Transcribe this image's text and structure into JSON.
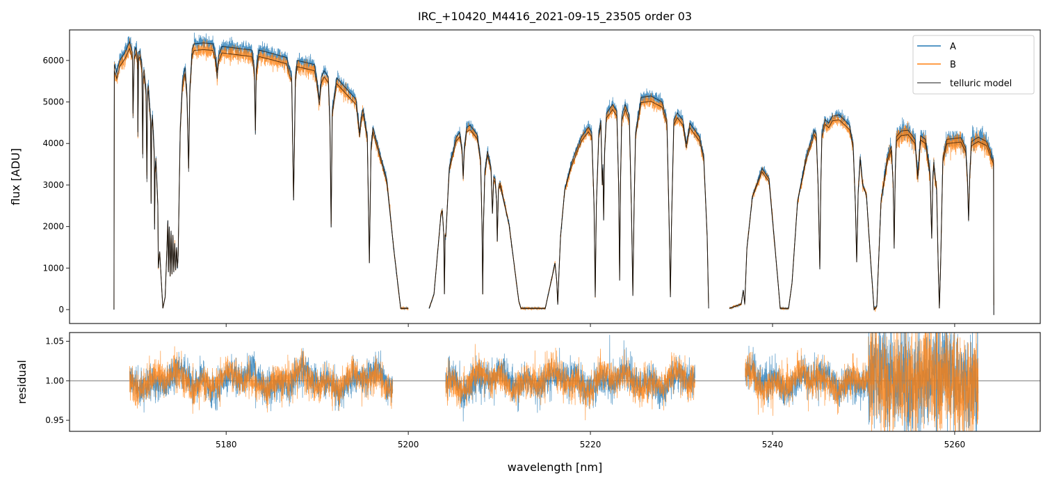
{
  "chart_data": [
    {
      "type": "line",
      "panel": "spectrum",
      "title": "IRC_+10420_M4416_2021-09-15_23505  order 03",
      "xlabel": "",
      "ylabel": "flux [ADU]",
      "xlim": [
        5162.8,
        5269.4
      ],
      "ylim": [
        -335,
        6735
      ],
      "yticks": [
        0,
        1000,
        2000,
        3000,
        4000,
        5000,
        6000
      ],
      "ytick_labels": [
        "0",
        "1000",
        "2000",
        "3000",
        "4000",
        "5000",
        "6000"
      ],
      "xticks": [
        5180,
        5200,
        5220,
        5240,
        5260
      ],
      "grid": false,
      "legend": {
        "placement": "top-right",
        "entries": [
          "A",
          "B",
          "telluric model"
        ]
      },
      "colors": {
        "A": "#1f77b4",
        "B": "#ff7f0e",
        "telluric model": "#000000"
      },
      "B_scale_vs_A": 0.975,
      "relative_noise": 0.012,
      "model_segments": [
        [
          [
            5167.68,
            0
          ],
          [
            5167.72,
            5900
          ],
          [
            5168.0,
            5700
          ],
          [
            5168.3,
            6000
          ],
          [
            5168.6,
            6100
          ],
          [
            5168.9,
            6200
          ],
          [
            5169.39,
            6450
          ],
          [
            5169.7,
            6200
          ],
          [
            5169.77,
            4725
          ],
          [
            5169.9,
            6200
          ],
          [
            5170.08,
            6320
          ],
          [
            5170.27,
            6100
          ],
          [
            5170.31,
            4270
          ],
          [
            5170.38,
            6200
          ],
          [
            5170.53,
            6230
          ],
          [
            5170.75,
            5900
          ],
          [
            5170.84,
            3737
          ],
          [
            5170.9,
            5700
          ],
          [
            5170.99,
            5780
          ],
          [
            5171.2,
            5300
          ],
          [
            5171.3,
            3150
          ],
          [
            5171.37,
            5300
          ],
          [
            5171.45,
            5400
          ],
          [
            5171.7,
            4600
          ],
          [
            5171.76,
            2550
          ],
          [
            5171.82,
            4500
          ],
          [
            5171.91,
            4690
          ],
          [
            5172.1,
            3800
          ],
          [
            5172.14,
            1930
          ],
          [
            5172.2,
            3400
          ],
          [
            5172.29,
            3650
          ],
          [
            5172.5,
            2500
          ],
          [
            5172.55,
            1000
          ],
          [
            5172.7,
            1400
          ],
          [
            5173.05,
            30
          ],
          [
            5173.3,
            300
          ],
          [
            5173.5,
            1500
          ],
          [
            5173.6,
            2150
          ],
          [
            5173.66,
            900
          ],
          [
            5173.75,
            2000
          ],
          [
            5173.85,
            800
          ],
          [
            5173.95,
            1900
          ],
          [
            5174.05,
            850
          ],
          [
            5174.15,
            1800
          ],
          [
            5174.25,
            900
          ],
          [
            5174.35,
            1600
          ],
          [
            5174.45,
            950
          ],
          [
            5174.55,
            1500
          ],
          [
            5174.65,
            1000
          ],
          [
            5174.73,
            1300
          ],
          [
            5174.96,
            4400
          ],
          [
            5175.2,
            5500
          ],
          [
            5175.5,
            5830
          ],
          [
            5175.7,
            5200
          ],
          [
            5175.88,
            3400
          ],
          [
            5176.0,
            5300
          ],
          [
            5176.26,
            6280
          ],
          [
            5176.49,
            6400
          ],
          [
            5177.5,
            6420
          ],
          [
            5178.55,
            6400
          ],
          [
            5178.85,
            6100
          ],
          [
            5179.01,
            5700
          ],
          [
            5179.15,
            6100
          ],
          [
            5179.54,
            6340
          ],
          [
            5181.0,
            6300
          ],
          [
            5182.82,
            6250
          ],
          [
            5183.1,
            5800
          ],
          [
            5183.21,
            4320
          ],
          [
            5183.3,
            5800
          ],
          [
            5183.59,
            6250
          ],
          [
            5185.0,
            6170
          ],
          [
            5186.64,
            6070
          ],
          [
            5187.2,
            5600
          ],
          [
            5187.4,
            2630
          ],
          [
            5187.6,
            5600
          ],
          [
            5187.79,
            6000
          ],
          [
            5189.69,
            5900
          ],
          [
            5190.0,
            5500
          ],
          [
            5190.23,
            5050
          ],
          [
            5190.45,
            5600
          ],
          [
            5190.76,
            5750
          ],
          [
            5191.22,
            5600
          ],
          [
            5191.4,
            4500
          ],
          [
            5191.53,
            1980
          ],
          [
            5191.65,
            4800
          ],
          [
            5192.14,
            5580
          ],
          [
            5194.27,
            5060
          ],
          [
            5194.5,
            4600
          ],
          [
            5194.66,
            4260
          ],
          [
            5194.85,
            4700
          ],
          [
            5195.04,
            4830
          ],
          [
            5195.5,
            4200
          ],
          [
            5195.73,
            1120
          ],
          [
            5195.9,
            3900
          ],
          [
            5196.11,
            4390
          ],
          [
            5197.63,
            3150
          ],
          [
            5198.4,
            1470
          ],
          [
            5199.16,
            30
          ],
          [
            5200.0,
            30
          ]
        ],
        [
          [
            5202.29,
            30
          ],
          [
            5202.82,
            370
          ],
          [
            5203.59,
            2310
          ],
          [
            5203.74,
            2380
          ],
          [
            5203.9,
            1800
          ],
          [
            5203.97,
            370
          ],
          [
            5204.05,
            1800
          ],
          [
            5204.12,
            1760
          ],
          [
            5204.5,
            3435
          ],
          [
            5205.27,
            4160
          ],
          [
            5205.65,
            4270
          ],
          [
            5205.9,
            3900
          ],
          [
            5206.03,
            3220
          ],
          [
            5206.15,
            3900
          ],
          [
            5206.41,
            4390
          ],
          [
            5206.79,
            4440
          ],
          [
            5207.56,
            4220
          ],
          [
            5207.94,
            3650
          ],
          [
            5208.1,
            2000
          ],
          [
            5208.17,
            370
          ],
          [
            5208.25,
            2000
          ],
          [
            5208.4,
            3320
          ],
          [
            5208.7,
            3820
          ],
          [
            5209.08,
            3435
          ],
          [
            5209.24,
            2310
          ],
          [
            5209.38,
            3200
          ],
          [
            5209.54,
            3150
          ],
          [
            5209.7,
            2600
          ],
          [
            5209.77,
            1640
          ],
          [
            5209.9,
            2900
          ],
          [
            5210.08,
            3050
          ],
          [
            5211.07,
            2045
          ],
          [
            5212.14,
            200
          ],
          [
            5212.37,
            30
          ],
          [
            5215.04,
            30
          ],
          [
            5215.65,
            640
          ],
          [
            5216.11,
            1120
          ],
          [
            5216.3,
            700
          ],
          [
            5216.41,
            120
          ],
          [
            5216.55,
            900
          ],
          [
            5216.72,
            1760
          ],
          [
            5217.18,
            2880
          ],
          [
            5217.94,
            3550
          ],
          [
            5219.01,
            4160
          ],
          [
            5219.77,
            4390
          ],
          [
            5220.15,
            4270
          ],
          [
            5220.4,
            2500
          ],
          [
            5220.53,
            300
          ],
          [
            5220.65,
            2500
          ],
          [
            5220.92,
            4270
          ],
          [
            5221.15,
            4560
          ],
          [
            5221.3,
            3000
          ],
          [
            5221.38,
            3500
          ],
          [
            5221.45,
            2150
          ],
          [
            5221.55,
            3800
          ],
          [
            5221.76,
            4730
          ],
          [
            5222.44,
            4940
          ],
          [
            5222.9,
            4780
          ],
          [
            5223.1,
            3000
          ],
          [
            5223.21,
            700
          ],
          [
            5223.3,
            3000
          ],
          [
            5223.44,
            4660
          ],
          [
            5223.82,
            4940
          ],
          [
            5224.27,
            4660
          ],
          [
            5224.5,
            2500
          ],
          [
            5224.66,
            330
          ],
          [
            5224.8,
            2500
          ],
          [
            5224.96,
            4270
          ],
          [
            5225.57,
            5110
          ],
          [
            5226.64,
            5145
          ],
          [
            5227.86,
            5000
          ],
          [
            5228.4,
            4560
          ],
          [
            5228.65,
            2000
          ],
          [
            5228.78,
            300
          ],
          [
            5228.9,
            2000
          ],
          [
            5229.16,
            4560
          ],
          [
            5229.54,
            4740
          ],
          [
            5230.15,
            4560
          ],
          [
            5230.53,
            3990
          ],
          [
            5230.92,
            4490
          ],
          [
            5231.98,
            4160
          ],
          [
            5232.44,
            3720
          ],
          [
            5232.82,
            1760
          ],
          [
            5232.98,
            30
          ]
        ],
        [
          [
            5235.27,
            30
          ],
          [
            5236.56,
            130
          ],
          [
            5236.79,
            470
          ],
          [
            5236.95,
            130
          ],
          [
            5237.18,
            1470
          ],
          [
            5237.79,
            2715
          ],
          [
            5238.85,
            3400
          ],
          [
            5239.62,
            3150
          ],
          [
            5240.61,
            640
          ],
          [
            5240.84,
            30
          ],
          [
            5241.76,
            30
          ],
          [
            5242.14,
            640
          ],
          [
            5242.75,
            2600
          ],
          [
            5243.66,
            3650
          ],
          [
            5244.58,
            4320
          ],
          [
            5244.81,
            4220
          ],
          [
            5245.0,
            3000
          ],
          [
            5245.19,
            970
          ],
          [
            5245.3,
            3000
          ],
          [
            5245.42,
            4270
          ],
          [
            5245.8,
            4575
          ],
          [
            5246.18,
            4490
          ],
          [
            5246.56,
            4660
          ],
          [
            5247.33,
            4690
          ],
          [
            5248.47,
            4440
          ],
          [
            5248.85,
            3990
          ],
          [
            5249.1,
            2500
          ],
          [
            5249.24,
            1140
          ],
          [
            5249.4,
            2800
          ],
          [
            5249.62,
            3690
          ],
          [
            5249.92,
            2990
          ],
          [
            5250.31,
            2765
          ],
          [
            5250.76,
            1220
          ],
          [
            5251.15,
            0
          ],
          [
            5251.45,
            80
          ],
          [
            5251.91,
            2600
          ],
          [
            5252.6,
            3650
          ],
          [
            5253.05,
            3940
          ],
          [
            5253.25,
            3000
          ],
          [
            5253.36,
            1470
          ],
          [
            5253.47,
            3300
          ],
          [
            5253.59,
            4160
          ],
          [
            5254.12,
            4300
          ],
          [
            5254.89,
            4320
          ],
          [
            5255.65,
            4100
          ],
          [
            5255.95,
            3220
          ],
          [
            5256.26,
            4190
          ],
          [
            5256.79,
            4100
          ],
          [
            5257.3,
            3300
          ],
          [
            5257.48,
            1710
          ],
          [
            5257.6,
            3200
          ],
          [
            5257.71,
            3550
          ],
          [
            5258.02,
            2880
          ],
          [
            5258.2,
            1000
          ],
          [
            5258.32,
            30
          ],
          [
            5258.45,
            1000
          ],
          [
            5258.7,
            3650
          ],
          [
            5259.16,
            4100
          ],
          [
            5260.69,
            4140
          ],
          [
            5261.22,
            3890
          ],
          [
            5261.4,
            3200
          ],
          [
            5261.53,
            2145
          ],
          [
            5261.65,
            3200
          ],
          [
            5261.83,
            4040
          ],
          [
            5262.21,
            4100
          ],
          [
            5262.6,
            4150
          ],
          [
            5263.5,
            4050
          ],
          [
            5264.27,
            3600
          ],
          [
            5264.3,
            -130
          ]
        ]
      ]
    },
    {
      "type": "line",
      "panel": "residual",
      "xlabel": "wavelength [nm]",
      "ylabel": "residual",
      "xlim": [
        5162.8,
        5269.4
      ],
      "ylim": [
        0.936,
        1.061
      ],
      "yticks": [
        0.95,
        1.0,
        1.05
      ],
      "ytick_labels": [
        "0.95",
        "1.00",
        "1.05"
      ],
      "xticks": [
        5180,
        5200,
        5220,
        5240,
        5260
      ],
      "xtick_labels": [
        "5180",
        "5200",
        "5220",
        "5240",
        "5260"
      ],
      "reference_line": 1.0,
      "segments": [
        [
          5169.4,
          5198.3
        ],
        [
          5204.1,
          5231.5
        ],
        [
          5237.0,
          5262.6
        ]
      ],
      "noise_sigma": 0.011,
      "noise_sigma_red_end": 0.035,
      "red_end_start": 5250.5,
      "series": [
        "A",
        "B"
      ]
    }
  ]
}
